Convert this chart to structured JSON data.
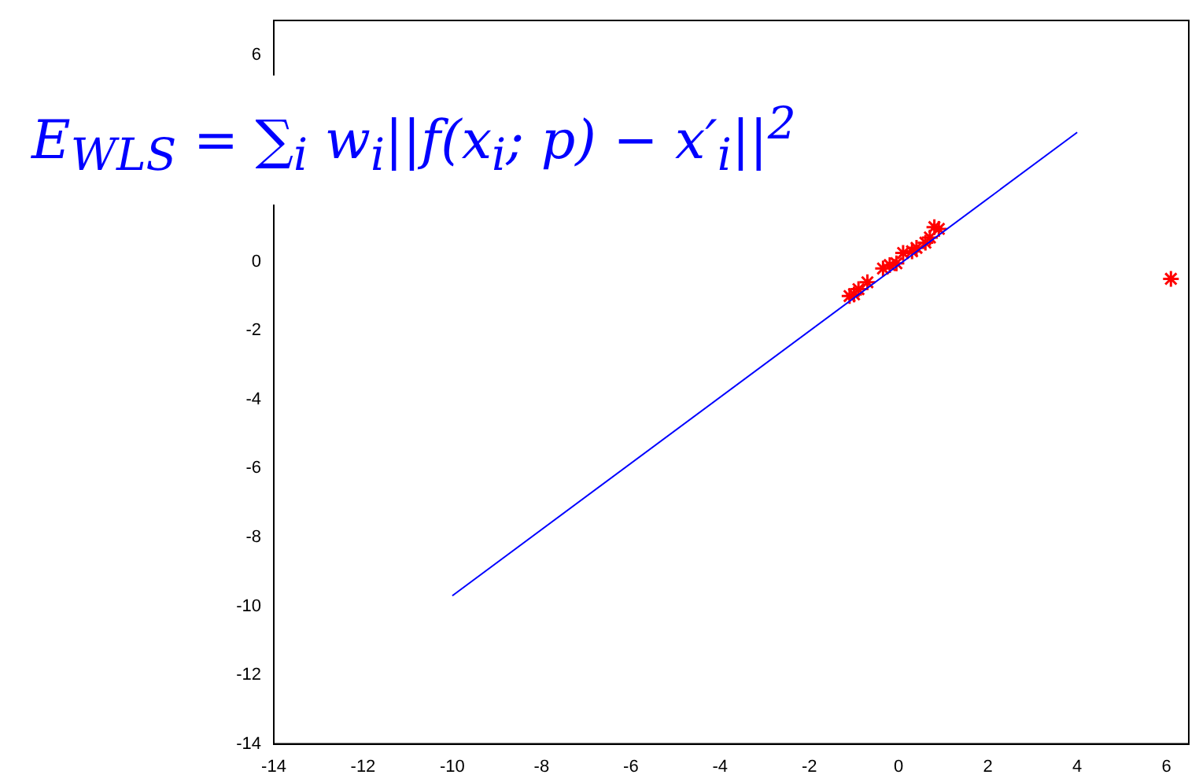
{
  "chart_data": {
    "type": "scatter",
    "annotations": [
      "E$_{WLS}$ = ∑$_{i}$ w$_{i}$||f(x$_{i}$; p) − x′$_{i}$||$^{2}$"
    ],
    "xlim": [
      -14,
      6.5
    ],
    "ylim": [
      -14,
      7
    ],
    "xticks": [
      -14,
      -12,
      -10,
      -8,
      -6,
      -4,
      -2,
      0,
      2,
      4,
      6
    ],
    "yticks": [
      -14,
      -12,
      -10,
      -8,
      -6,
      -4,
      -2,
      0,
      6
    ],
    "grid": false,
    "legend": false,
    "series": [
      {
        "type": "line",
        "color": "#0000ff",
        "x": [
          -10,
          4
        ],
        "values": [
          -9.7,
          3.75
        ],
        "marker": "none",
        "line_style": "solid"
      },
      {
        "color": "#ff0000",
        "x": [
          -1.1,
          -1.0,
          -0.9,
          -0.7,
          -0.35,
          -0.2,
          -0.05,
          0.1,
          0.3,
          0.4,
          0.6,
          0.7,
          0.8,
          0.9,
          6.1
        ],
        "values": [
          -1.0,
          -0.95,
          -0.8,
          -0.6,
          -0.2,
          -0.1,
          -0.05,
          0.25,
          0.3,
          0.4,
          0.55,
          0.7,
          1.0,
          0.95,
          -0.5
        ],
        "marker": "cross"
      }
    ]
  }
}
